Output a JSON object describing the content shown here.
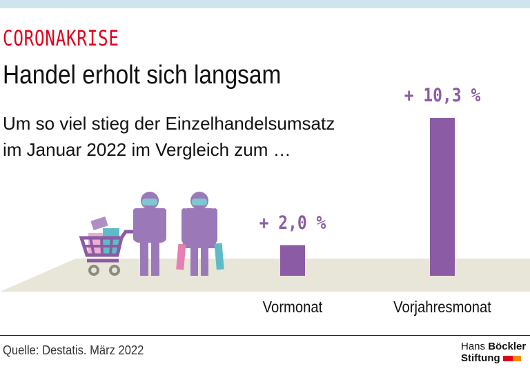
{
  "header": {
    "kicker": "CORONAKRISE",
    "title": "Handel erholt sich langsam",
    "subtitle_line1": "Um so viel stieg der Einzelhandelsumsatz",
    "subtitle_line2": "im Januar 2022 im Vergleich zum …"
  },
  "chart_data": {
    "type": "bar",
    "categories": [
      "Vormonat",
      "Vorjahresmonat"
    ],
    "values": [
      2.0,
      10.3
    ],
    "data_labels": [
      "+ 2,0 %",
      "+ 10,3 %"
    ],
    "ylim": [
      0,
      10.3
    ],
    "grid": false,
    "bar_color": "#8b5ba5"
  },
  "colors": {
    "accent": "#e2001a",
    "bar": "#8b5ba5",
    "floor": "#e8e6d8",
    "top_band": "#cfe4ec"
  },
  "illustration": {
    "icons": [
      "shopping-cart-icon",
      "man-with-mask-icon",
      "woman-with-mask-shopping-bags-icon"
    ]
  },
  "footer": {
    "source": "Quelle: Destatis. März 2022",
    "logo_line1_light": "Hans",
    "logo_line1_bold": "Böckler",
    "logo_line2": "Stiftung"
  }
}
